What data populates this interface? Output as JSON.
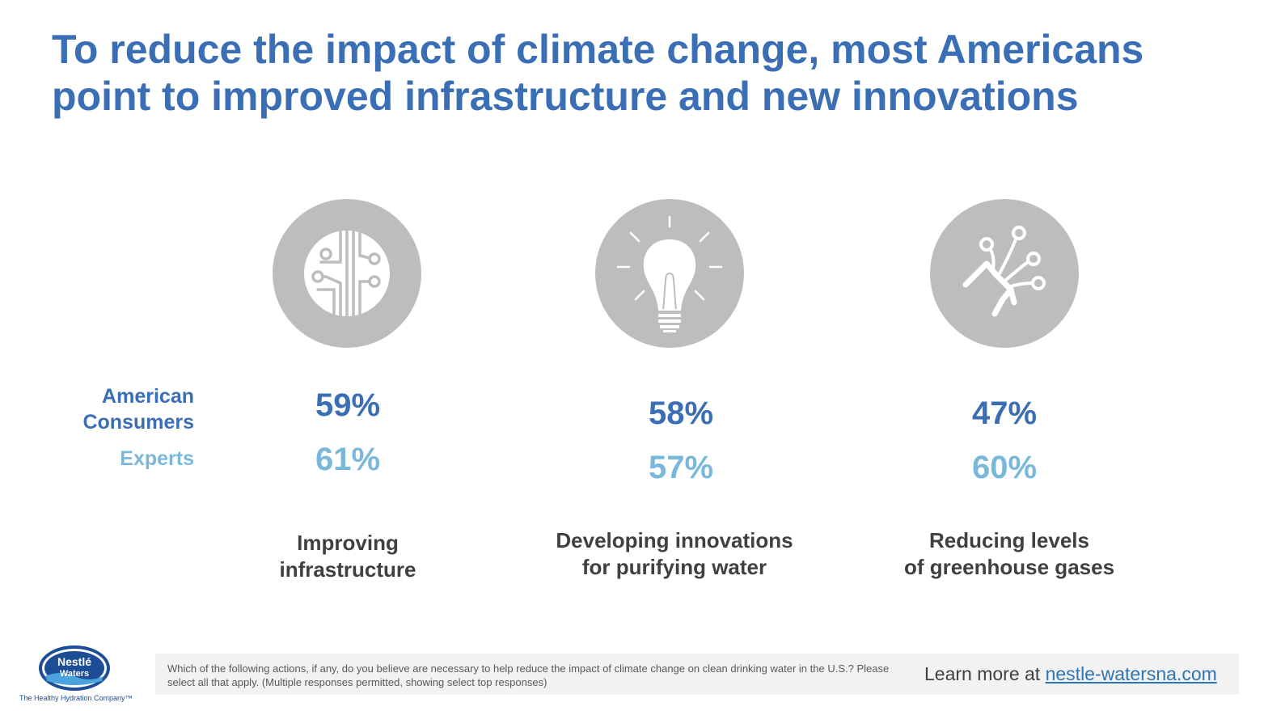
{
  "title": "To reduce the impact of climate change, most Americans point to improved infrastructure and new innovations",
  "row_labels": {
    "consumers": "American Consumers",
    "experts": "Experts"
  },
  "colors": {
    "title": "#3a6eb5",
    "consumers": "#3a6eb5",
    "experts": "#7ab8db",
    "icon_bg": "#bdbdbd",
    "caption": "#404040"
  },
  "items": [
    {
      "icon": "circuit-icon",
      "consumers": "59%",
      "experts": "61%",
      "caption_line1": "Improving",
      "caption_line2": "infrastructure"
    },
    {
      "icon": "lightbulb-icon",
      "consumers": "58%",
      "experts": "57%",
      "caption_line1": "Developing innovations",
      "caption_line2": "for purifying water"
    },
    {
      "icon": "plug-icon",
      "consumers": "47%",
      "experts": "60%",
      "caption_line1": "Reducing levels",
      "caption_line2": "of greenhouse gases"
    }
  ],
  "footer": {
    "question": "Which of the following actions, if any, do you believe are necessary to help reduce the impact of climate change on clean drinking water in the U.S.? Please select all that apply. (Multiple responses permitted, showing select top responses)",
    "learn_more": "Learn more at ",
    "link": "nestle-watersna.com"
  },
  "logo": {
    "line1": "Nestlé",
    "line2": "Waters",
    "tagline": "The Healthy Hydration Company™"
  }
}
